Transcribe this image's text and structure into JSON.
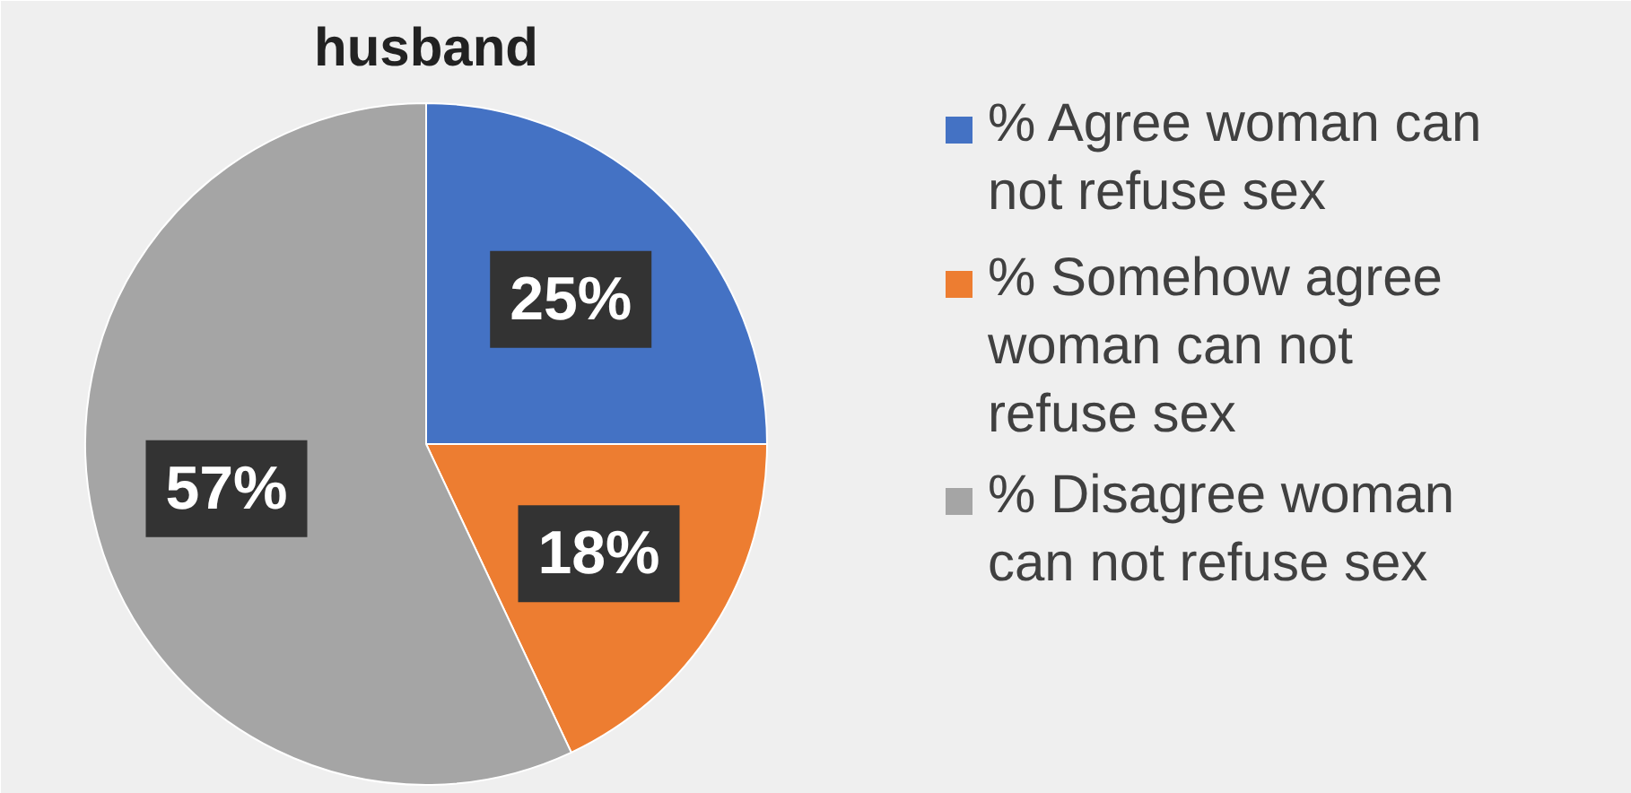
{
  "chart_data": {
    "type": "pie",
    "title": "husband",
    "categories": [
      "% Agree woman can not refuse sex",
      "% Somehow agree woman can not refuse sex",
      "%  Disagree woman can not refuse sex"
    ],
    "values": [
      25,
      18,
      57
    ],
    "colors": [
      "#4472c4",
      "#ed7d31",
      "#a5a5a5"
    ],
    "value_labels": [
      "25%",
      "18%",
      "57%"
    ],
    "legend": "right"
  }
}
